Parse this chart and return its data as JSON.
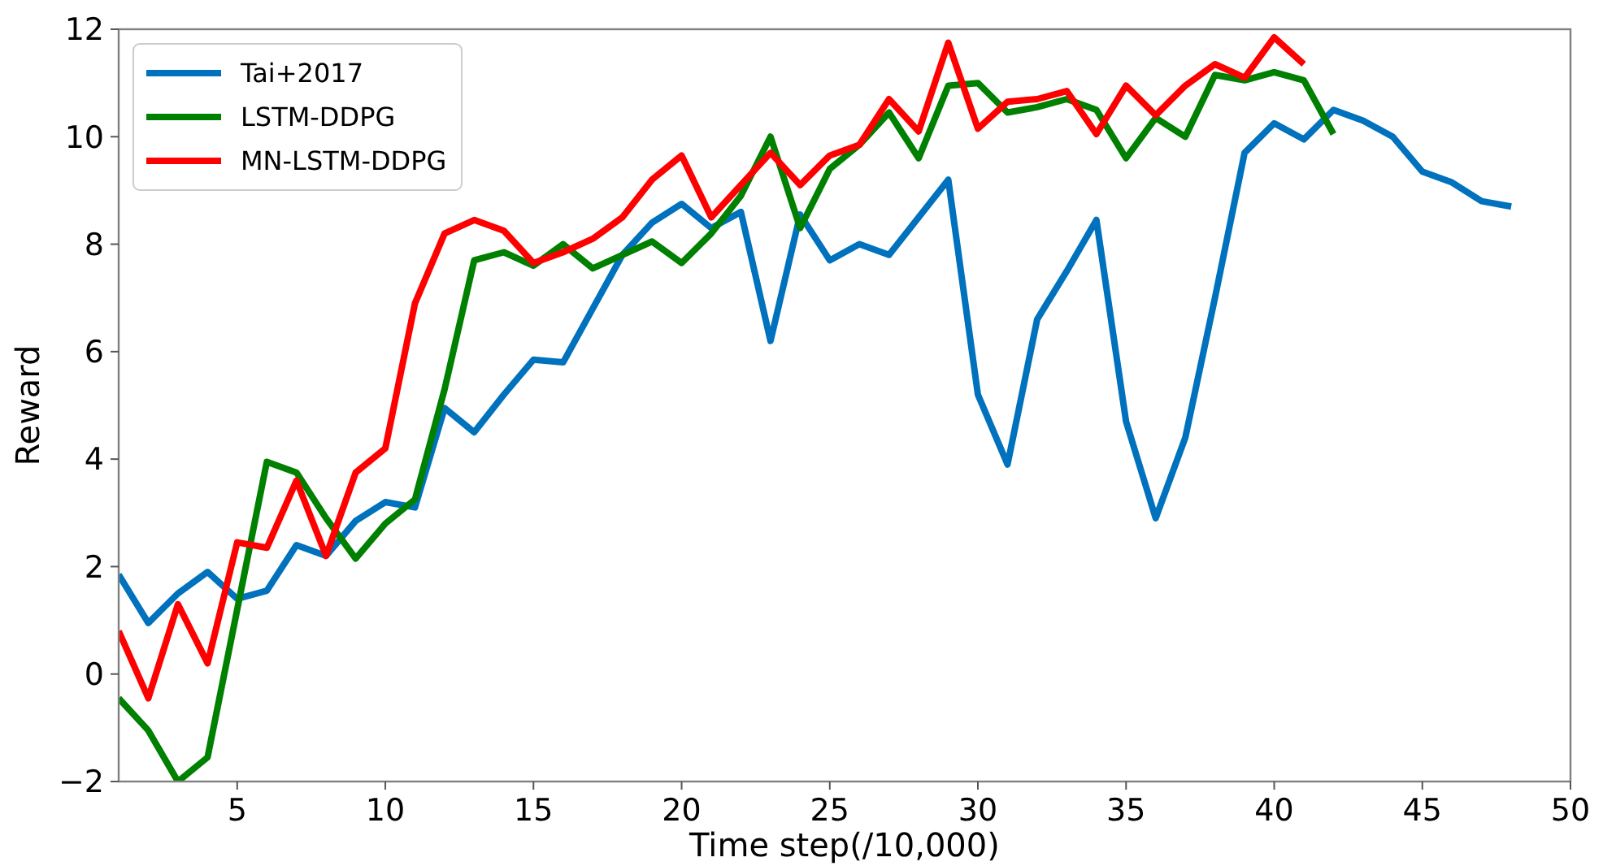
{
  "chart_data": {
    "type": "line",
    "xlabel": "Time step(/10,000)",
    "ylabel": "Reward",
    "xlim": [
      1,
      50
    ],
    "xticks": [
      5,
      10,
      15,
      20,
      25,
      30,
      35,
      40,
      45,
      50
    ],
    "ylim": [
      -2,
      12
    ],
    "yticks": [
      -2,
      0,
      2,
      4,
      6,
      8,
      10,
      12
    ],
    "grid": false,
    "legend": "top left",
    "marker": "none",
    "line_style": "solid",
    "series": [
      {
        "name": "Tai+2017",
        "color": "#0072bd",
        "x": [
          1,
          2,
          3,
          4,
          5,
          6,
          7,
          8,
          9,
          10,
          11,
          12,
          13,
          14,
          15,
          16,
          17,
          18,
          19,
          20,
          21,
          22,
          23,
          24,
          25,
          26,
          27,
          28,
          29,
          30,
          31,
          32,
          33,
          34,
          35,
          36,
          37,
          38,
          39,
          40,
          41,
          42,
          43,
          44,
          45,
          46,
          47,
          48
        ],
        "values": [
          1.85,
          0.95,
          1.5,
          1.9,
          1.4,
          1.55,
          2.4,
          2.2,
          2.85,
          3.2,
          3.1,
          4.95,
          4.5,
          5.2,
          5.85,
          5.8,
          6.8,
          7.8,
          8.4,
          8.75,
          8.3,
          8.6,
          6.2,
          8.55,
          7.7,
          8.0,
          7.8,
          8.5,
          9.2,
          5.2,
          3.9,
          6.6,
          7.5,
          8.45,
          4.7,
          2.9,
          4.4,
          7.0,
          9.7,
          10.25,
          9.95,
          10.5,
          10.3,
          10.0,
          9.35,
          9.15,
          8.8,
          8.7
        ]
      },
      {
        "name": "LSTM-DDPG",
        "color": "#008000",
        "x": [
          1,
          2,
          3,
          4,
          5,
          6,
          7,
          8,
          9,
          10,
          11,
          12,
          13,
          14,
          15,
          16,
          17,
          18,
          19,
          20,
          21,
          22,
          23,
          24,
          25,
          26,
          27,
          28,
          29,
          30,
          31,
          32,
          33,
          34,
          35,
          36,
          37,
          38,
          39,
          40,
          41,
          42
        ],
        "values": [
          -0.45,
          -1.05,
          -2.0,
          -1.55,
          1.2,
          3.95,
          3.75,
          2.9,
          2.15,
          2.8,
          3.25,
          5.3,
          7.7,
          7.85,
          7.6,
          8.0,
          7.55,
          7.8,
          8.05,
          7.65,
          8.2,
          8.9,
          10.0,
          8.3,
          9.4,
          9.85,
          10.45,
          9.6,
          10.95,
          11.0,
          10.45,
          10.55,
          10.7,
          10.5,
          9.6,
          10.35,
          10.0,
          11.15,
          11.05,
          11.2,
          11.05,
          10.05
        ]
      },
      {
        "name": "MN-LSTM-DDPG",
        "color": "#ff0000",
        "x": [
          1,
          2,
          3,
          4,
          5,
          6,
          7,
          8,
          9,
          10,
          11,
          12,
          13,
          14,
          15,
          16,
          17,
          18,
          19,
          20,
          21,
          22,
          23,
          24,
          25,
          26,
          27,
          28,
          29,
          30,
          31,
          32,
          33,
          34,
          35,
          36,
          37,
          38,
          39,
          40,
          41
        ],
        "values": [
          0.8,
          -0.45,
          1.3,
          0.2,
          2.45,
          2.35,
          3.6,
          2.2,
          3.75,
          4.2,
          6.9,
          8.2,
          8.45,
          8.25,
          7.65,
          7.85,
          8.1,
          8.5,
          9.2,
          9.65,
          8.5,
          9.1,
          9.7,
          9.1,
          9.65,
          9.85,
          10.7,
          10.1,
          11.75,
          10.15,
          10.65,
          10.7,
          10.85,
          10.05,
          10.95,
          10.4,
          10.95,
          11.35,
          11.1,
          11.85,
          11.35
        ]
      }
    ]
  }
}
